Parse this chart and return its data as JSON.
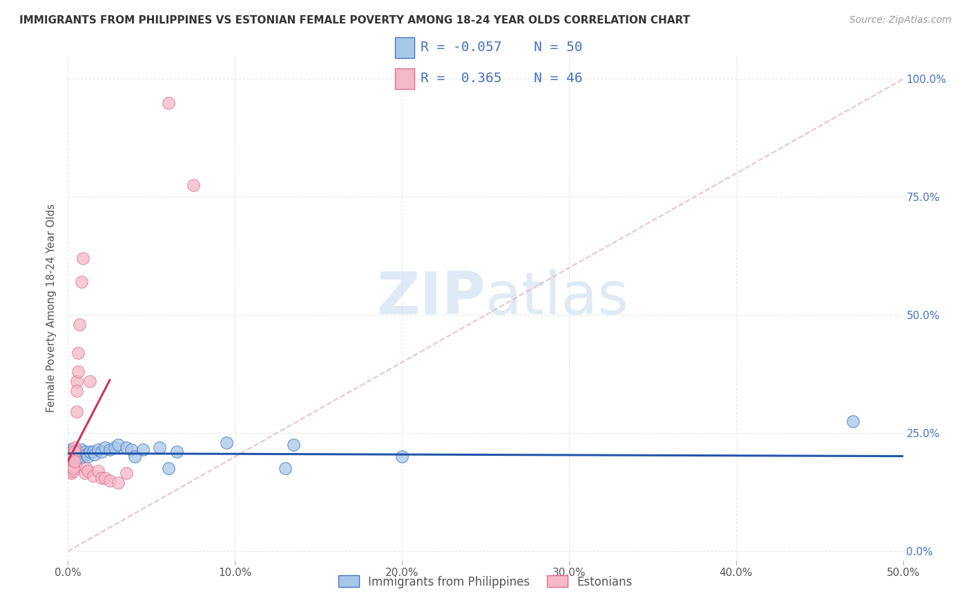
{
  "title": "IMMIGRANTS FROM PHILIPPINES VS ESTONIAN FEMALE POVERTY AMONG 18-24 YEAR OLDS CORRELATION CHART",
  "source": "Source: ZipAtlas.com",
  "ylabel": "Female Poverty Among 18-24 Year Olds",
  "xlim": [
    0.0,
    0.5
  ],
  "ylim": [
    -0.02,
    1.05
  ],
  "xtick_vals": [
    0.0,
    0.1,
    0.2,
    0.3,
    0.4,
    0.5
  ],
  "xticklabels": [
    "0.0%",
    "10.0%",
    "20.0%",
    "30.0%",
    "40.0%",
    "50.0%"
  ],
  "ytick_vals": [
    0.0,
    0.25,
    0.5,
    0.75,
    1.0
  ],
  "yticklabels_right": [
    "0.0%",
    "25.0%",
    "50.0%",
    "75.0%",
    "100.0%"
  ],
  "blue_color": "#a8c8e8",
  "blue_edge_color": "#4472c4",
  "pink_color": "#f4b8c8",
  "pink_edge_color": "#e07090",
  "blue_line_color": "#2255aa",
  "pink_line_color": "#cc3355",
  "diagonal_color": "#f0c0cc",
  "watermark_zip": "ZIP",
  "watermark_atlas": "atlas",
  "bg_color": "#ffffff",
  "grid_color": "#e8e8e8",
  "blue_scatter_x": [
    0.0,
    0.0,
    0.0,
    0.001,
    0.001,
    0.001,
    0.001,
    0.001,
    0.002,
    0.002,
    0.002,
    0.002,
    0.002,
    0.003,
    0.003,
    0.003,
    0.003,
    0.004,
    0.004,
    0.004,
    0.005,
    0.005,
    0.006,
    0.007,
    0.008,
    0.009,
    0.01,
    0.011,
    0.012,
    0.013,
    0.015,
    0.016,
    0.018,
    0.02,
    0.022,
    0.025,
    0.028,
    0.03,
    0.035,
    0.038,
    0.04,
    0.045,
    0.055,
    0.06,
    0.065,
    0.095,
    0.13,
    0.135,
    0.2,
    0.47
  ],
  "blue_scatter_y": [
    0.195,
    0.21,
    0.19,
    0.2,
    0.215,
    0.185,
    0.205,
    0.195,
    0.2,
    0.21,
    0.195,
    0.185,
    0.205,
    0.2,
    0.215,
    0.19,
    0.205,
    0.2,
    0.21,
    0.195,
    0.205,
    0.195,
    0.21,
    0.2,
    0.215,
    0.2,
    0.21,
    0.205,
    0.2,
    0.21,
    0.21,
    0.205,
    0.215,
    0.21,
    0.22,
    0.215,
    0.22,
    0.225,
    0.22,
    0.215,
    0.2,
    0.215,
    0.22,
    0.175,
    0.21,
    0.23,
    0.175,
    0.225,
    0.2,
    0.275
  ],
  "pink_scatter_x": [
    0.0,
    0.0,
    0.0,
    0.0,
    0.0,
    0.001,
    0.001,
    0.001,
    0.001,
    0.001,
    0.001,
    0.001,
    0.002,
    0.002,
    0.002,
    0.002,
    0.002,
    0.003,
    0.003,
    0.003,
    0.003,
    0.003,
    0.004,
    0.004,
    0.004,
    0.005,
    0.005,
    0.005,
    0.006,
    0.006,
    0.007,
    0.008,
    0.009,
    0.01,
    0.011,
    0.012,
    0.013,
    0.015,
    0.018,
    0.02,
    0.022,
    0.025,
    0.03,
    0.035,
    0.06,
    0.075
  ],
  "pink_scatter_y": [
    0.2,
    0.195,
    0.185,
    0.175,
    0.18,
    0.195,
    0.2,
    0.185,
    0.175,
    0.19,
    0.17,
    0.18,
    0.195,
    0.185,
    0.175,
    0.165,
    0.18,
    0.185,
    0.19,
    0.18,
    0.17,
    0.175,
    0.22,
    0.21,
    0.19,
    0.36,
    0.34,
    0.295,
    0.38,
    0.42,
    0.48,
    0.57,
    0.62,
    0.165,
    0.175,
    0.17,
    0.36,
    0.16,
    0.17,
    0.155,
    0.155,
    0.15,
    0.145,
    0.165,
    0.95,
    0.775
  ],
  "title_fontsize": 11,
  "source_fontsize": 10,
  "axis_label_fontsize": 11,
  "tick_fontsize": 11,
  "legend_fontsize": 14
}
